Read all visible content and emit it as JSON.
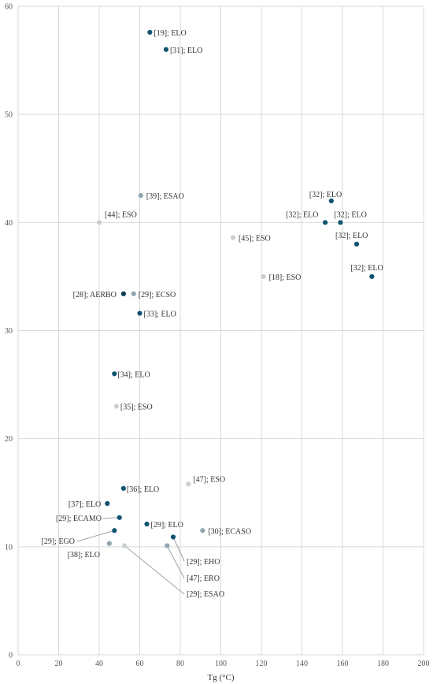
{
  "chart_data": {
    "type": "scatter",
    "title": "",
    "xlabel": "Tg (°C)",
    "ylabel": "",
    "xlim": [
      0,
      200
    ],
    "ylim": [
      0,
      60
    ],
    "xticks": [
      0,
      20,
      40,
      60,
      80,
      100,
      120,
      140,
      160,
      180,
      200
    ],
    "yticks": [
      0,
      10,
      20,
      30,
      40,
      50,
      60
    ],
    "grid": true,
    "colors": {
      "dark": "#0e5470",
      "medium": "#8fa4ae",
      "light": "#c9cfd3",
      "darkest": "#0b3b50"
    },
    "points": [
      {
        "x": 65,
        "y": 57.6,
        "label": "[19]; ELO",
        "color": "dark"
      },
      {
        "x": 73,
        "y": 56.0,
        "label": "[31]; ELO",
        "color": "dark"
      },
      {
        "x": 60.5,
        "y": 42.5,
        "label": "[39]; ESAO",
        "color": "medium"
      },
      {
        "x": 40,
        "y": 40.0,
        "label": "[44]; ESO",
        "color": "light"
      },
      {
        "x": 106,
        "y": 38.6,
        "label": "[45]; ESO",
        "color": "light"
      },
      {
        "x": 121,
        "y": 35.0,
        "label": "[18]; ESO",
        "color": "light"
      },
      {
        "x": 154.5,
        "y": 42.0,
        "label": "[32]; ELO",
        "color": "dark"
      },
      {
        "x": 151.5,
        "y": 40.0,
        "label": "[32]; ELO",
        "color": "dark"
      },
      {
        "x": 159,
        "y": 40.0,
        "label": "[32]; ELO",
        "color": "dark"
      },
      {
        "x": 167,
        "y": 38.0,
        "label": "[32]; ELO",
        "color": "dark"
      },
      {
        "x": 174.5,
        "y": 35.0,
        "label": "[32]; ELO",
        "color": "dark"
      },
      {
        "x": 52,
        "y": 33.4,
        "label": "[28]; AERBO",
        "color": "darkest"
      },
      {
        "x": 57,
        "y": 33.4,
        "label": "[29]; ECSO",
        "color": "medium"
      },
      {
        "x": 60,
        "y": 31.6,
        "label": "[33]; ELO",
        "color": "dark"
      },
      {
        "x": 47.5,
        "y": 26.0,
        "label": "[34]; ELO",
        "color": "dark"
      },
      {
        "x": 48.5,
        "y": 23.0,
        "label": "[35]; ESO",
        "color": "light"
      },
      {
        "x": 52,
        "y": 15.4,
        "label": "[36]; ELO",
        "color": "dark"
      },
      {
        "x": 84,
        "y": 15.8,
        "label": "[47]; ESO",
        "color": "light"
      },
      {
        "x": 44,
        "y": 14.0,
        "label": "[37]; ELO",
        "color": "dark"
      },
      {
        "x": 50,
        "y": 12.7,
        "label": "[29]; ECAMO",
        "color": "dark"
      },
      {
        "x": 63.5,
        "y": 12.1,
        "label": "[29]; ELO",
        "color": "dark"
      },
      {
        "x": 91,
        "y": 11.5,
        "label": "[30]; ECASO",
        "color": "medium"
      },
      {
        "x": 47.5,
        "y": 11.5,
        "label": "[29]; EGO",
        "color": "dark"
      },
      {
        "x": 76.5,
        "y": 10.9,
        "label": "[29]; EHO",
        "color": "dark"
      },
      {
        "x": 45,
        "y": 10.3,
        "label": "[38]; ELO",
        "color": "medium"
      },
      {
        "x": 73.5,
        "y": 10.1,
        "label": "[47]; ERO",
        "color": "medium"
      },
      {
        "x": 52.5,
        "y": 10.1,
        "label": "[29]; ESAO",
        "color": "light"
      }
    ]
  }
}
